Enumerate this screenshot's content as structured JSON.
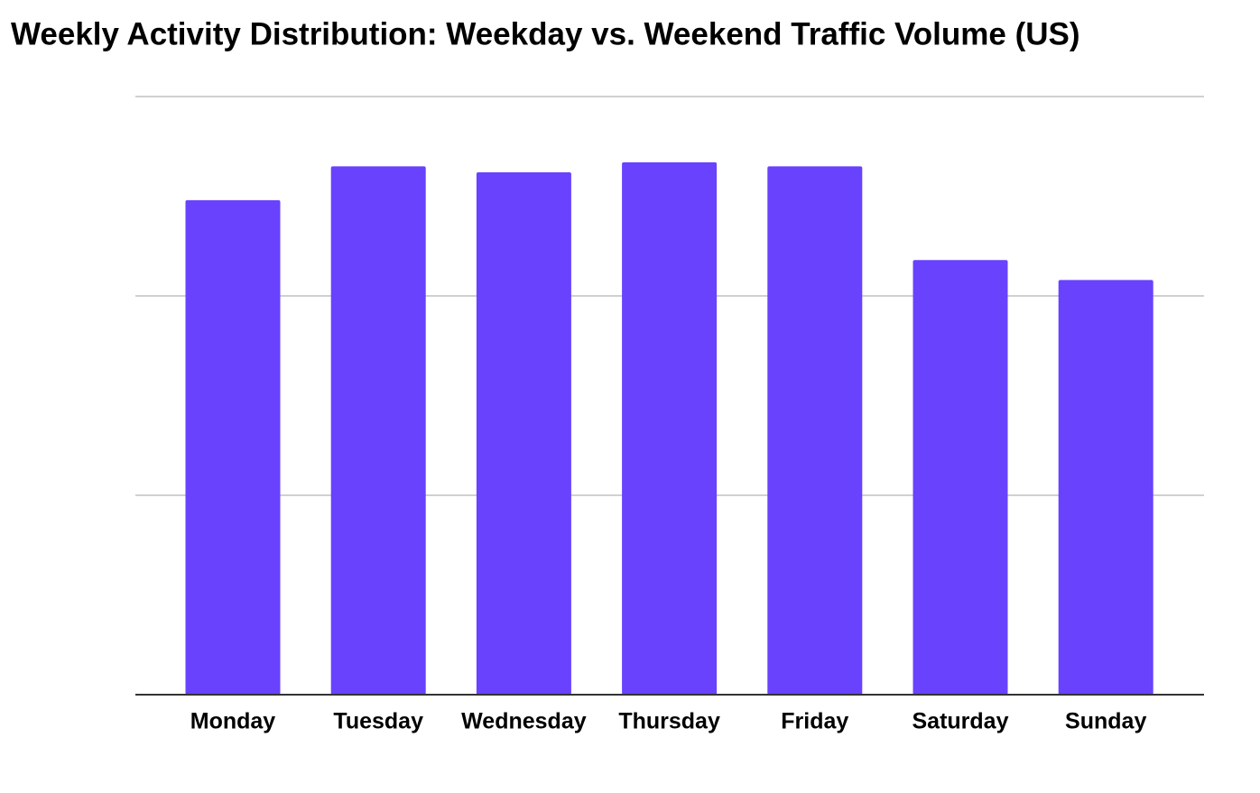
{
  "chart_data": {
    "type": "bar",
    "title": "Weekly Activity Distribution: Weekday vs. Weekend Traffic Volume (US)",
    "categories": [
      "Monday",
      "Tuesday",
      "Wednesday",
      "Thursday",
      "Friday",
      "Saturday",
      "Sunday"
    ],
    "values": [
      2.48,
      2.65,
      2.62,
      2.67,
      2.65,
      2.18,
      2.08
    ],
    "color": "#6842fd",
    "ylim": [
      0,
      3
    ],
    "grid_lines": [
      1,
      2,
      3
    ],
    "grid": true
  }
}
